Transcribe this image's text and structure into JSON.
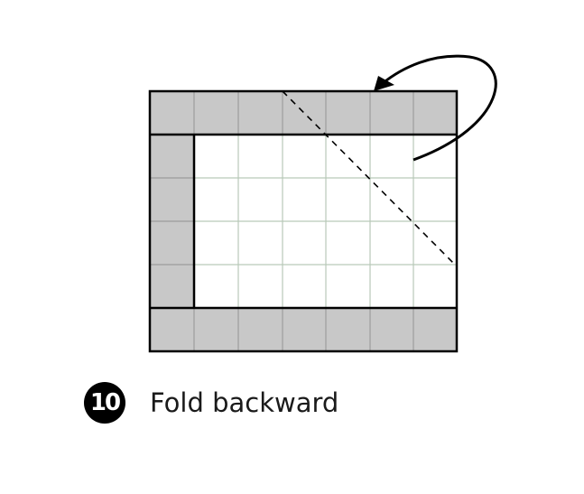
{
  "step": {
    "number": "10",
    "caption": "Fold backward"
  },
  "diagram": {
    "grid_columns": 7,
    "grid_rows": 6,
    "colors": {
      "paper_shaded": "#c8c8c8",
      "paper_white": "#ffffff",
      "grid_line_shaded": "#9c9c9c",
      "grid_line_white": "#b9c9b9",
      "outline": "#000000"
    },
    "fold_line": "dashed",
    "arrow": "curved-arrow-backward"
  }
}
